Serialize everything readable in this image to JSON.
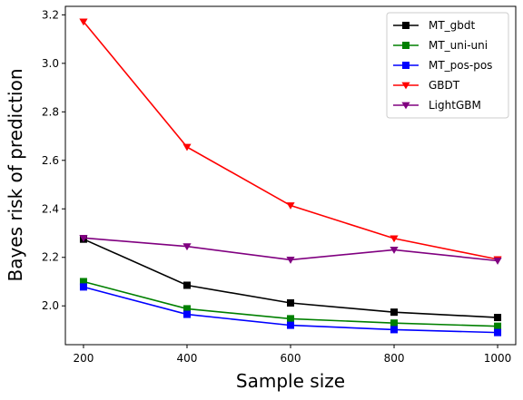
{
  "chart_data": {
    "type": "line",
    "xlabel": "Sample size",
    "ylabel": "Bayes risk of prediction",
    "x": [
      200,
      400,
      600,
      800,
      1000
    ],
    "xlim": [
      165,
      1035
    ],
    "ylim": [
      1.84,
      3.235
    ],
    "xticks": [
      "200",
      "400",
      "600",
      "800",
      "1000"
    ],
    "yticks": [
      "2.0",
      "2.2",
      "2.4",
      "2.6",
      "2.8",
      "3.0",
      "3.2"
    ],
    "grid": false,
    "legend_position": "top-right",
    "series": [
      {
        "name": "MT_gbdt",
        "color": "#000000",
        "marker": "square",
        "values": [
          2.275,
          2.085,
          2.012,
          1.974,
          1.952
        ]
      },
      {
        "name": "MT_uni-uni",
        "color": "#008000",
        "marker": "square",
        "values": [
          2.1,
          1.988,
          1.947,
          1.929,
          1.916
        ]
      },
      {
        "name": "MT_pos-pos",
        "color": "#0000ff",
        "marker": "square",
        "values": [
          2.078,
          1.965,
          1.92,
          1.902,
          1.89
        ]
      },
      {
        "name": "GBDT",
        "color": "#ff0000",
        "marker": "triangle-down",
        "values": [
          3.172,
          2.655,
          2.414,
          2.278,
          2.192
        ]
      },
      {
        "name": "LightGBM",
        "color": "#800080",
        "marker": "triangle-down",
        "values": [
          2.28,
          2.245,
          2.19,
          2.231,
          2.186
        ]
      }
    ]
  }
}
